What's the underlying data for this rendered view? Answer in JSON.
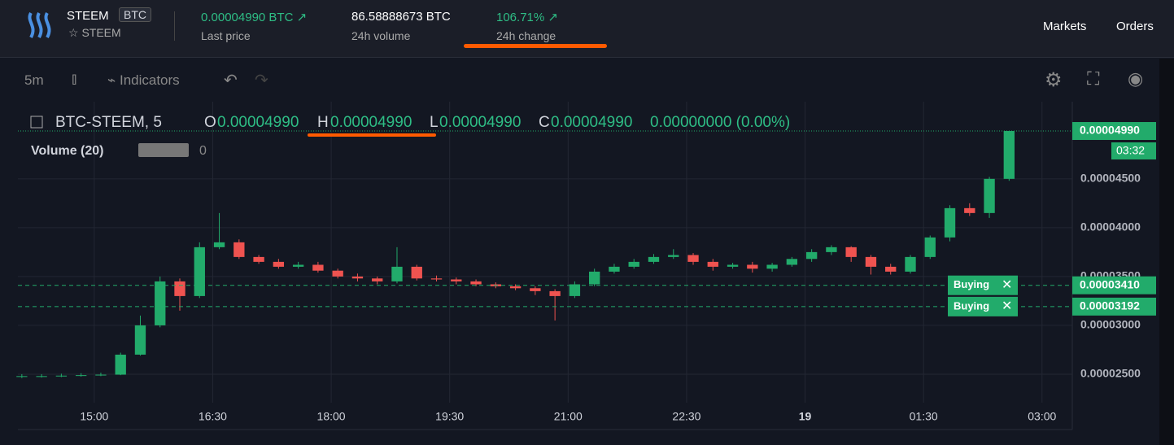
{
  "header": {
    "pair": "STEEM",
    "badge": "BTC",
    "subtitle": "STEEM",
    "stats": [
      {
        "value": "0.00004990 BTC",
        "label": "Last price"
      },
      {
        "value": "86.58888673 BTC",
        "label": "24h volume"
      },
      {
        "value": "106.71%",
        "label": "24h change"
      }
    ],
    "nav": [
      "Markets",
      "Orders"
    ]
  },
  "toolbar": {
    "interval": "5m",
    "indicators": "Indicators"
  },
  "legend": {
    "symbol": "BTC-STEEM, 5",
    "items": [
      {
        "key": "O",
        "value": "0.00004990"
      },
      {
        "key": "H",
        "value": "0.00004990"
      },
      {
        "key": "L",
        "value": "0.00004990"
      },
      {
        "key": "C",
        "value": "0.00004990"
      }
    ],
    "change": "0.00000000 (0.00%)",
    "volume": "Volume (20)",
    "volume_value": "0"
  },
  "chart_data": {
    "type": "candlestick",
    "up_color": "#22ab6b",
    "down_color": "#ef5350",
    "x": [
      845,
      860,
      875,
      890,
      905,
      920,
      935,
      950,
      965,
      980,
      995,
      1010,
      1025,
      1040,
      1055,
      1070,
      1085,
      1100,
      1115,
      1130,
      1145,
      1160,
      1175,
      1190,
      1205,
      1220,
      1235,
      1250,
      1265,
      1280,
      1295,
      1310,
      1325,
      1340,
      1355,
      1370,
      1385,
      1400,
      1415,
      1430,
      1445,
      1460,
      1475,
      1490,
      1505,
      1520,
      1535,
      1550,
      1565,
      1580,
      1595
    ],
    "open": [
      2.48e-05,
      2.48e-05,
      2.48e-05,
      2.485e-05,
      2.49e-05,
      2.495e-05,
      2.7e-05,
      3e-05,
      3.45e-05,
      3.3e-05,
      3.8e-05,
      3.85e-05,
      3.7e-05,
      3.65e-05,
      3.6e-05,
      3.62e-05,
      3.56e-05,
      3.5e-05,
      3.48e-05,
      3.45e-05,
      3.6e-05,
      3.48e-05,
      3.47e-05,
      3.45e-05,
      3.42e-05,
      3.4e-05,
      3.38e-05,
      3.35e-05,
      3.3e-05,
      3.42e-05,
      3.55e-05,
      3.6e-05,
      3.65e-05,
      3.7e-05,
      3.72e-05,
      3.65e-05,
      3.6e-05,
      3.62e-05,
      3.58e-05,
      3.62e-05,
      3.68e-05,
      3.75e-05,
      3.8e-05,
      3.7e-05,
      3.6e-05,
      3.55e-05,
      3.7e-05,
      3.9e-05,
      4.2e-05,
      4.15e-05,
      4.5e-05
    ],
    "high": [
      2.5e-05,
      2.5e-05,
      2.505e-05,
      2.51e-05,
      2.515e-05,
      2.72e-05,
      3.1e-05,
      3.5e-05,
      3.48e-05,
      3.85e-05,
      4.15e-05,
      3.88e-05,
      3.72e-05,
      3.68e-05,
      3.65e-05,
      3.65e-05,
      3.58e-05,
      3.53e-05,
      3.5e-05,
      3.8e-05,
      3.62e-05,
      3.51e-05,
      3.49e-05,
      3.47e-05,
      3.44e-05,
      3.42e-05,
      3.4e-05,
      3.37e-05,
      3.45e-05,
      3.58e-05,
      3.63e-05,
      3.68e-05,
      3.73e-05,
      3.78e-05,
      3.74e-05,
      3.68e-05,
      3.64e-05,
      3.65e-05,
      3.64e-05,
      3.7e-05,
      3.78e-05,
      3.82e-05,
      3.81e-05,
      3.72e-05,
      3.63e-05,
      3.72e-05,
      3.92e-05,
      4.23e-05,
      4.25e-05,
      4.52e-05,
      4.99e-05
    ],
    "low": [
      2.46e-05,
      2.465e-05,
      2.47e-05,
      2.475e-05,
      2.48e-05,
      2.49e-05,
      2.69e-05,
      2.98e-05,
      3.15e-05,
      3.28e-05,
      3.78e-05,
      3.68e-05,
      3.63e-05,
      3.58e-05,
      3.58e-05,
      3.54e-05,
      3.48e-05,
      3.45e-05,
      3.42e-05,
      3.43e-05,
      3.46e-05,
      3.45e-05,
      3.42e-05,
      3.4e-05,
      3.38e-05,
      3.36e-05,
      3.31e-05,
      3.05e-05,
      3.28e-05,
      3.4e-05,
      3.53e-05,
      3.58e-05,
      3.63e-05,
      3.68e-05,
      3.62e-05,
      3.56e-05,
      3.58e-05,
      3.54e-05,
      3.55e-05,
      3.6e-05,
      3.65e-05,
      3.72e-05,
      3.65e-05,
      3.52e-05,
      3.52e-05,
      3.53e-05,
      3.68e-05,
      3.86e-05,
      4.12e-05,
      4.1e-05,
      4.48e-05
    ],
    "close": [
      2.48e-05,
      2.48e-05,
      2.485e-05,
      2.49e-05,
      2.495e-05,
      2.7e-05,
      3e-05,
      3.45e-05,
      3.3e-05,
      3.8e-05,
      3.85e-05,
      3.7e-05,
      3.65e-05,
      3.6e-05,
      3.62e-05,
      3.56e-05,
      3.5e-05,
      3.48e-05,
      3.45e-05,
      3.6e-05,
      3.48e-05,
      3.47e-05,
      3.45e-05,
      3.42e-05,
      3.4e-05,
      3.38e-05,
      3.35e-05,
      3.3e-05,
      3.42e-05,
      3.55e-05,
      3.6e-05,
      3.65e-05,
      3.7e-05,
      3.72e-05,
      3.65e-05,
      3.6e-05,
      3.62e-05,
      3.58e-05,
      3.62e-05,
      3.68e-05,
      3.75e-05,
      3.8e-05,
      3.7e-05,
      3.6e-05,
      3.55e-05,
      3.7e-05,
      3.9e-05,
      4.2e-05,
      4.15e-05,
      4.5e-05,
      4.99e-05
    ],
    "xlim": [
      842,
      1643
    ],
    "ylim": [
      2.208e-05,
      5.29e-05
    ],
    "xticks": [
      {
        "value": 900,
        "label": "15:00"
      },
      {
        "value": 990,
        "label": "16:30"
      },
      {
        "value": 1080,
        "label": "18:00"
      },
      {
        "value": 1170,
        "label": "19:30"
      },
      {
        "value": 1260,
        "label": "21:00"
      },
      {
        "value": 1350,
        "label": "22:30"
      },
      {
        "value": 1440,
        "label": "19"
      },
      {
        "value": 1530,
        "label": "01:30"
      },
      {
        "value": 1620,
        "label": "03:00"
      }
    ],
    "yticks": [
      {
        "value": 2.5e-05,
        "label": "0.00002500"
      },
      {
        "value": 3e-05,
        "label": "0.00003000"
      },
      {
        "value": 3.5e-05,
        "label": "0.00003500"
      },
      {
        "value": 4e-05,
        "label": "0.00004000"
      },
      {
        "value": 4.5e-05,
        "label": "0.00004500"
      }
    ],
    "grid": true,
    "last_price": {
      "value": 4.99e-05,
      "label": "0.00004990",
      "countdown": "03:32"
    },
    "orders": [
      {
        "label": "Buying",
        "value": 3.41e-05,
        "price_label": "0.00003410"
      },
      {
        "label": "Buying",
        "value": 3.192e-05,
        "price_label": "0.00003192"
      }
    ]
  }
}
